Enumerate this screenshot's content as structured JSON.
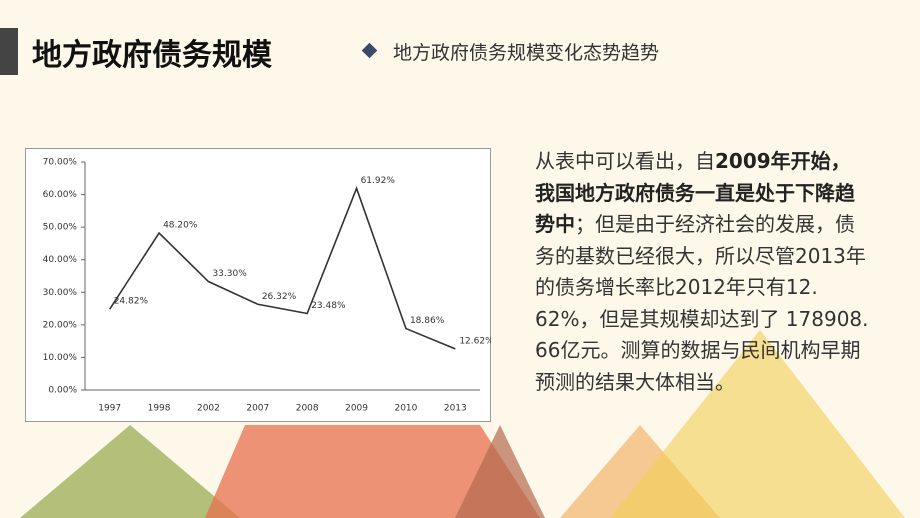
{
  "header": {
    "title": "地方政府债务规模",
    "subtitle": "地方政府债务规模变化态势趋势"
  },
  "chart_data": {
    "type": "line",
    "categories": [
      "1997",
      "1998",
      "2002",
      "2007",
      "2008",
      "2009",
      "2010",
      "2013"
    ],
    "values": [
      24.82,
      48.2,
      33.3,
      26.32,
      23.48,
      61.92,
      18.86,
      12.62
    ],
    "value_labels": [
      "24.82%",
      "48.20%",
      "33.30%",
      "26.32%",
      "23.48%",
      "61.92%",
      "18.86%",
      "12.62%"
    ],
    "color": "#333333",
    "ylim": [
      0,
      70
    ],
    "yticks": [
      {
        "value": 0,
        "label": "0.00%"
      },
      {
        "value": 10,
        "label": "10.00%"
      },
      {
        "value": 20,
        "label": "20.00%"
      },
      {
        "value": 30,
        "label": "30.00%"
      },
      {
        "value": 40,
        "label": "40.00%"
      },
      {
        "value": 50,
        "label": "50.00%"
      },
      {
        "value": 60,
        "label": "60.00%"
      },
      {
        "value": 70,
        "label": "70.00%"
      }
    ]
  },
  "text": {
    "segments": [
      {
        "text": "从表中可以看出，自",
        "bold": false
      },
      {
        "text": "2009年开始，我国地方政府债务一直是处于下降趋势中",
        "bold": true
      },
      {
        "text": "；但是由于经济社会的发展，债务的基数已经很大，所以尽管2013年的债务增长率比2012年只有12. 62%，但是其规模却达到了 178908. 66亿元。测算的数据与民间机构早期预测的结果大体相当。",
        "bold": false
      }
    ]
  }
}
